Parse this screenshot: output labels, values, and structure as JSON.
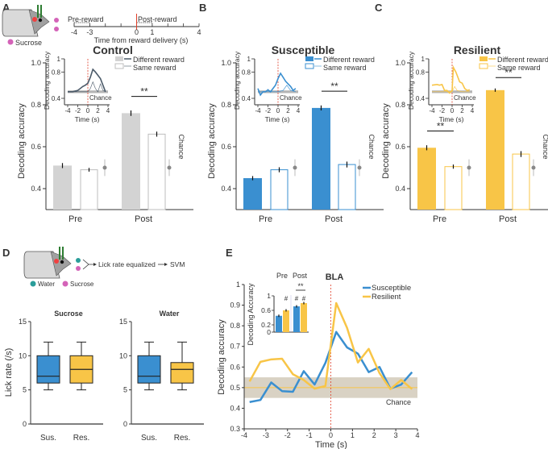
{
  "panel_labels": [
    "A",
    "B",
    "C",
    "D",
    "E"
  ],
  "colors": {
    "control": "#d3d3d3",
    "control_line": "#4b5a69",
    "susceptible": "#3a8fd0",
    "resilient": "#f8c547",
    "chance": "#999999",
    "reward_line": "#e0402a",
    "band": "#d9d2c4",
    "sucrose": "#d463b8",
    "water": "#2a9d9a"
  },
  "panel_a_schematic": {
    "reward_label": "Sucrose",
    "pre_label": "Pre-reward",
    "post_label": "Post-reward",
    "ticks": [
      -4,
      -3,
      0,
      1,
      4
    ],
    "xlabel": "Time from reward delivery (s)"
  },
  "panel_d_schematic": {
    "water": "Water",
    "sucrose": "Sucrose",
    "flow": "Lick rate equalized",
    "svm": "SVM"
  },
  "chart_data": [
    {
      "panel": "A",
      "type": "bar",
      "title": "Control",
      "ylabel": "Decoding accuracy",
      "ylim": [
        0.3,
        1.0
      ],
      "yticks": [
        "0.4",
        "0.6",
        "0.8",
        "1.0"
      ],
      "categories": [
        "Pre",
        "Post"
      ],
      "series": [
        {
          "name": "Different reward",
          "values": [
            0.51,
            0.76
          ],
          "sem": [
            0.012,
            0.013
          ]
        },
        {
          "name": "Same reward",
          "values": [
            0.49,
            0.66
          ],
          "sem": [
            0.009,
            0.012
          ]
        }
      ],
      "chance": {
        "label": "Chance",
        "value": 0.5
      },
      "significance": [
        {
          "category": 1,
          "label": "**"
        }
      ],
      "inset": {
        "type": "line",
        "xlabel": "Time (s)",
        "ylabel": "Decoding accuracy",
        "xlim": [
          -4,
          4
        ],
        "ylim": [
          0.4,
          1
        ],
        "yticks": [
          "0.4",
          "0.8",
          "1"
        ],
        "xticks": [
          "-4",
          "-2",
          "0",
          "2",
          "4"
        ],
        "chance_label": "Chance",
        "series": [
          {
            "name": "Different reward",
            "x": [
              -4,
              -3,
              -2,
              -1,
              -0.5,
              0,
              0.5,
              1,
              1.5,
              2,
              2.5,
              3,
              3.5
            ],
            "y": [
              0.5,
              0.5,
              0.52,
              0.58,
              0.6,
              0.63,
              0.72,
              0.84,
              0.8,
              0.75,
              0.7,
              0.6,
              0.5
            ]
          },
          {
            "name": "Same reward",
            "x": [
              -4,
              -3,
              -2,
              -1,
              0,
              0.5,
              1,
              1.5,
              2,
              2.5,
              3,
              3.5
            ],
            "y": [
              0.5,
              0.5,
              0.5,
              0.5,
              0.5,
              0.55,
              0.65,
              0.55,
              0.5,
              0.62,
              0.52,
              0.5
            ]
          }
        ]
      }
    },
    {
      "panel": "B",
      "type": "bar",
      "title": "Susceptible",
      "ylabel": "Decoding accuracy",
      "ylim": [
        0.3,
        1.0
      ],
      "yticks": [
        "0.4",
        "0.6",
        "0.8",
        "1.0"
      ],
      "categories": [
        "Pre",
        "Post"
      ],
      "series": [
        {
          "name": "Different reward",
          "values": [
            0.45,
            0.785
          ],
          "sem": [
            0.01,
            0.012
          ]
        },
        {
          "name": "Same reward",
          "values": [
            0.49,
            0.515
          ],
          "sem": [
            0.012,
            0.014
          ]
        }
      ],
      "chance": {
        "label": "Chance",
        "value": 0.5
      },
      "significance": [
        {
          "category": 1,
          "label": "**"
        }
      ],
      "inset": {
        "type": "line",
        "xlabel": "Time (s)",
        "ylabel": "Decoding accuracy",
        "xlim": [
          -4,
          4
        ],
        "ylim": [
          0.4,
          1
        ],
        "yticks": [
          "0.4",
          "0.8",
          "1"
        ],
        "xticks": [
          "-4",
          "-2",
          "0",
          "2",
          "4"
        ],
        "chance_label": "Chance",
        "series": [
          {
            "name": "Different reward",
            "x": [
              -4,
              -3.5,
              -3,
              -2.5,
              -2,
              -1.5,
              -1,
              -0.5,
              0,
              0.5,
              1,
              1.5,
              2,
              2.5,
              3,
              3.5
            ],
            "y": [
              0.55,
              0.45,
              0.5,
              0.5,
              0.53,
              0.5,
              0.55,
              0.6,
              0.7,
              0.78,
              0.72,
              0.66,
              0.62,
              0.58,
              0.52,
              0.55
            ]
          },
          {
            "name": "Same reward",
            "x": [
              -4,
              -2,
              0,
              1,
              1.75,
              2.5,
              3.5
            ],
            "y": [
              0.5,
              0.5,
              0.5,
              0.52,
              0.6,
              0.52,
              0.5
            ]
          }
        ]
      }
    },
    {
      "panel": "C",
      "type": "bar",
      "title": "Resilient",
      "ylabel": "Decoding accuracy",
      "ylim": [
        0.3,
        1.0
      ],
      "yticks": [
        "0.4",
        "0.6",
        "0.8",
        "1.0"
      ],
      "categories": [
        "Pre",
        "Post"
      ],
      "series": [
        {
          "name": "Different reward",
          "values": [
            0.595,
            0.87
          ],
          "sem": [
            0.012,
            0.008
          ]
        },
        {
          "name": "Same reward",
          "values": [
            0.505,
            0.565
          ],
          "sem": [
            0.01,
            0.014
          ]
        }
      ],
      "chance": {
        "label": "Chance",
        "value": 0.5
      },
      "significance": [
        {
          "category": 0,
          "label": "**"
        },
        {
          "category": 1,
          "label": "**"
        }
      ],
      "inset": {
        "type": "line",
        "xlabel": "Time (s)",
        "ylabel": "Decoding accuracy",
        "xlim": [
          -4,
          4
        ],
        "ylim": [
          0.4,
          1
        ],
        "yticks": [
          "0.4",
          "0.8",
          "1"
        ],
        "xticks": [
          "-4",
          "-2",
          "0",
          "2",
          "4"
        ],
        "chance_label": "Chance",
        "series": [
          {
            "name": "Different reward",
            "x": [
              -4,
              -3,
              -2.5,
              -2,
              -1.5,
              -1,
              -0.5,
              0,
              0.25,
              0.75,
              1.5,
              2,
              2.5,
              3,
              3.5
            ],
            "y": [
              0.6,
              0.61,
              0.6,
              0.61,
              0.52,
              0.52,
              0.48,
              0.52,
              0.87,
              0.8,
              0.65,
              0.63,
              0.55,
              0.52,
              0.53
            ]
          },
          {
            "name": "Same reward",
            "x": [
              -4,
              -1,
              0,
              0.5,
              1,
              2,
              3.5
            ],
            "y": [
              0.5,
              0.5,
              0.5,
              0.58,
              0.52,
              0.5,
              0.5
            ]
          }
        ]
      }
    },
    {
      "panel": "D",
      "type": "box",
      "title": "Sucrose",
      "ylabel": "Lick rate (/s)",
      "ylim": [
        0,
        15
      ],
      "yticks": [
        "0",
        "5",
        "10",
        "15"
      ],
      "categories": [
        "Sus.",
        "Res."
      ],
      "boxes": [
        {
          "min": 5,
          "q1": 6,
          "median": 7,
          "q3": 10,
          "max": 12
        },
        {
          "min": 5,
          "q1": 6,
          "median": 8,
          "q3": 10,
          "max": 12
        }
      ]
    },
    {
      "panel": "D",
      "type": "box",
      "title": "Water",
      "ylabel": "",
      "ylim": [
        0,
        15
      ],
      "yticks": [
        "0",
        "5",
        "10",
        "15"
      ],
      "categories": [
        "Sus.",
        "Res."
      ],
      "boxes": [
        {
          "min": 5,
          "q1": 6,
          "median": 7,
          "q3": 10,
          "max": 12
        },
        {
          "min": 5,
          "q1": 6,
          "median": 8,
          "q3": 9,
          "max": 12
        }
      ]
    },
    {
      "panel": "E",
      "type": "line",
      "title": "BLA",
      "xlabel": "Time (s)",
      "ylabel": "Decoding accuracy",
      "xlim": [
        -4,
        4
      ],
      "ylim": [
        0.3,
        1
      ],
      "xticks": [
        "-4",
        "-3",
        "-2",
        "-1",
        "0",
        "1",
        "2",
        "3",
        "4"
      ],
      "yticks": [
        "0.3",
        "0.4",
        "0.5",
        "0.6",
        "0.7",
        "0.8",
        "0.9",
        "1"
      ],
      "chance": {
        "label": "Chance",
        "value": 0.5,
        "band": [
          0.45,
          0.55
        ]
      },
      "series": [
        {
          "name": "Susceptible",
          "x": [
            -3.75,
            -3.25,
            -2.75,
            -2.25,
            -1.75,
            -1.25,
            -0.75,
            -0.25,
            0.25,
            0.75,
            1.25,
            1.75,
            2.25,
            2.75,
            3.25,
            3.75
          ],
          "y": [
            0.43,
            0.44,
            0.525,
            0.483,
            0.48,
            0.58,
            0.515,
            0.62,
            0.77,
            0.695,
            0.665,
            0.575,
            0.6,
            0.495,
            0.515,
            0.575
          ]
        },
        {
          "name": "Resilient",
          "x": [
            -3.75,
            -3.25,
            -2.75,
            -2.25,
            -1.75,
            -1.25,
            -0.75,
            -0.25,
            0.25,
            0.75,
            1.25,
            1.75,
            2.25,
            2.75,
            3.25,
            3.75
          ],
          "y": [
            0.53,
            0.625,
            0.637,
            0.64,
            0.565,
            0.537,
            0.495,
            0.508,
            0.91,
            0.79,
            0.622,
            0.688,
            0.57,
            0.493,
            0.537,
            0.493
          ]
        }
      ],
      "inset": {
        "type": "bar",
        "ylabel": "Decoding Accuracy",
        "ylim": [
          0,
          1
        ],
        "yticks": [
          "0",
          "0.2",
          "0.6",
          "1"
        ],
        "categories": [
          "Pre",
          "Post"
        ],
        "series": [
          {
            "name": "Susceptible",
            "values": [
              0.45,
              0.71
            ]
          },
          {
            "name": "Resilient",
            "values": [
              0.6,
              0.8
            ]
          }
        ],
        "markers": {
          "pre": [
            "",
            "#"
          ],
          "post": [
            "#",
            "#"
          ]
        },
        "significance": "**"
      }
    }
  ]
}
